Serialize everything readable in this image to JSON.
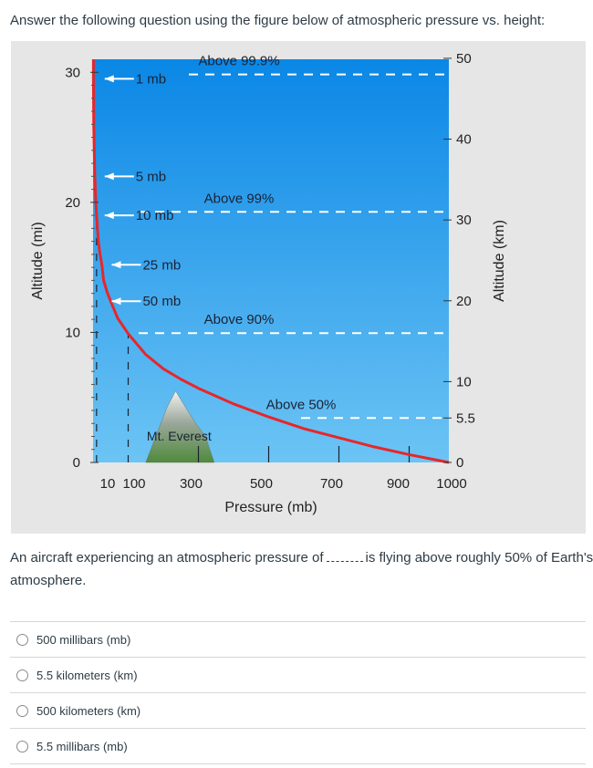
{
  "question": {
    "prompt": "Answer the following question using the figure below of atmospheric pressure vs. height:",
    "fill_in_before": "An aircraft experiencing an atmospheric pressure of",
    "fill_in_after": "is flying above roughly 50% of Earth's",
    "fill_in_line2": "atmosphere."
  },
  "answers": [
    {
      "label": "500 millibars (mb)"
    },
    {
      "label": "5.5 kilometers (km)"
    },
    {
      "label": "500 kilometers (km)"
    },
    {
      "label": "5.5 millibars (mb)"
    }
  ],
  "chart_data": {
    "type": "line",
    "xlabel": "Pressure (mb)",
    "ylabel_left": "Altitude (mi)",
    "ylabel_right": "Altitude (km)",
    "xlim": [
      0,
      1013
    ],
    "ylim_mi": [
      0,
      31
    ],
    "x_ticks": [
      {
        "value": 10,
        "label": "10"
      },
      {
        "value": 100,
        "label": "100"
      },
      {
        "value": 300,
        "label": "300"
      },
      {
        "value": 500,
        "label": "500"
      },
      {
        "value": 700,
        "label": "700"
      },
      {
        "value": 900,
        "label": "900"
      },
      {
        "value": 1000,
        "label": "1000"
      }
    ],
    "y_left_ticks": [
      {
        "value": 0,
        "label": "0"
      },
      {
        "value": 10,
        "label": "10"
      },
      {
        "value": 20,
        "label": "20"
      },
      {
        "value": 30,
        "label": "30"
      }
    ],
    "y_right_ticks": [
      {
        "value": 0,
        "label": "0"
      },
      {
        "value": 5.5,
        "label": "5.5"
      },
      {
        "value": 10,
        "label": "10"
      },
      {
        "value": 20,
        "label": "20"
      },
      {
        "value": 30,
        "label": "30"
      },
      {
        "value": 40,
        "label": "40"
      },
      {
        "value": 50,
        "label": "50"
      }
    ],
    "curve": {
      "x": [
        1013,
        900,
        800,
        700,
        600,
        500,
        400,
        300,
        250,
        200,
        150,
        100,
        70,
        50,
        40,
        30,
        25,
        20,
        15,
        10,
        7,
        5,
        3,
        2,
        1
      ],
      "y": [
        0,
        0.6,
        1.2,
        1.9,
        2.6,
        3.5,
        4.5,
        5.7,
        6.4,
        7.2,
        8.3,
        9.9,
        11.1,
        12.4,
        13.1,
        14.0,
        15.2,
        16.0,
        17.0,
        19.0,
        20.5,
        22.0,
        24.5,
        26.0,
        29.5
      ]
    },
    "pressure_arrows": [
      {
        "label": "1 mb",
        "altitude": 29.5
      },
      {
        "label": "5 mb",
        "altitude": 22
      },
      {
        "label": "10 mb",
        "altitude": 19
      },
      {
        "label": "25 mb",
        "altitude": 15.2
      },
      {
        "label": "50 mb",
        "altitude": 12.4
      }
    ],
    "fraction_lines": [
      {
        "label": "Above 99.9%",
        "altitude_km": 48
      },
      {
        "label": "Above 99%",
        "altitude_km": 31
      },
      {
        "label": "Above 90%",
        "altitude_km": 16
      },
      {
        "label": "Above 50%",
        "altitude_km": 5.5
      }
    ],
    "annotations": [
      {
        "label": "Mt. Everest"
      }
    ],
    "colors": {
      "sky_top": "#0a87e6",
      "sky_bottom": "#6cc4f4",
      "curve": "#e8262a",
      "dashed_lines": "#ffffff",
      "panel_bg": "#e6e6e6"
    }
  }
}
